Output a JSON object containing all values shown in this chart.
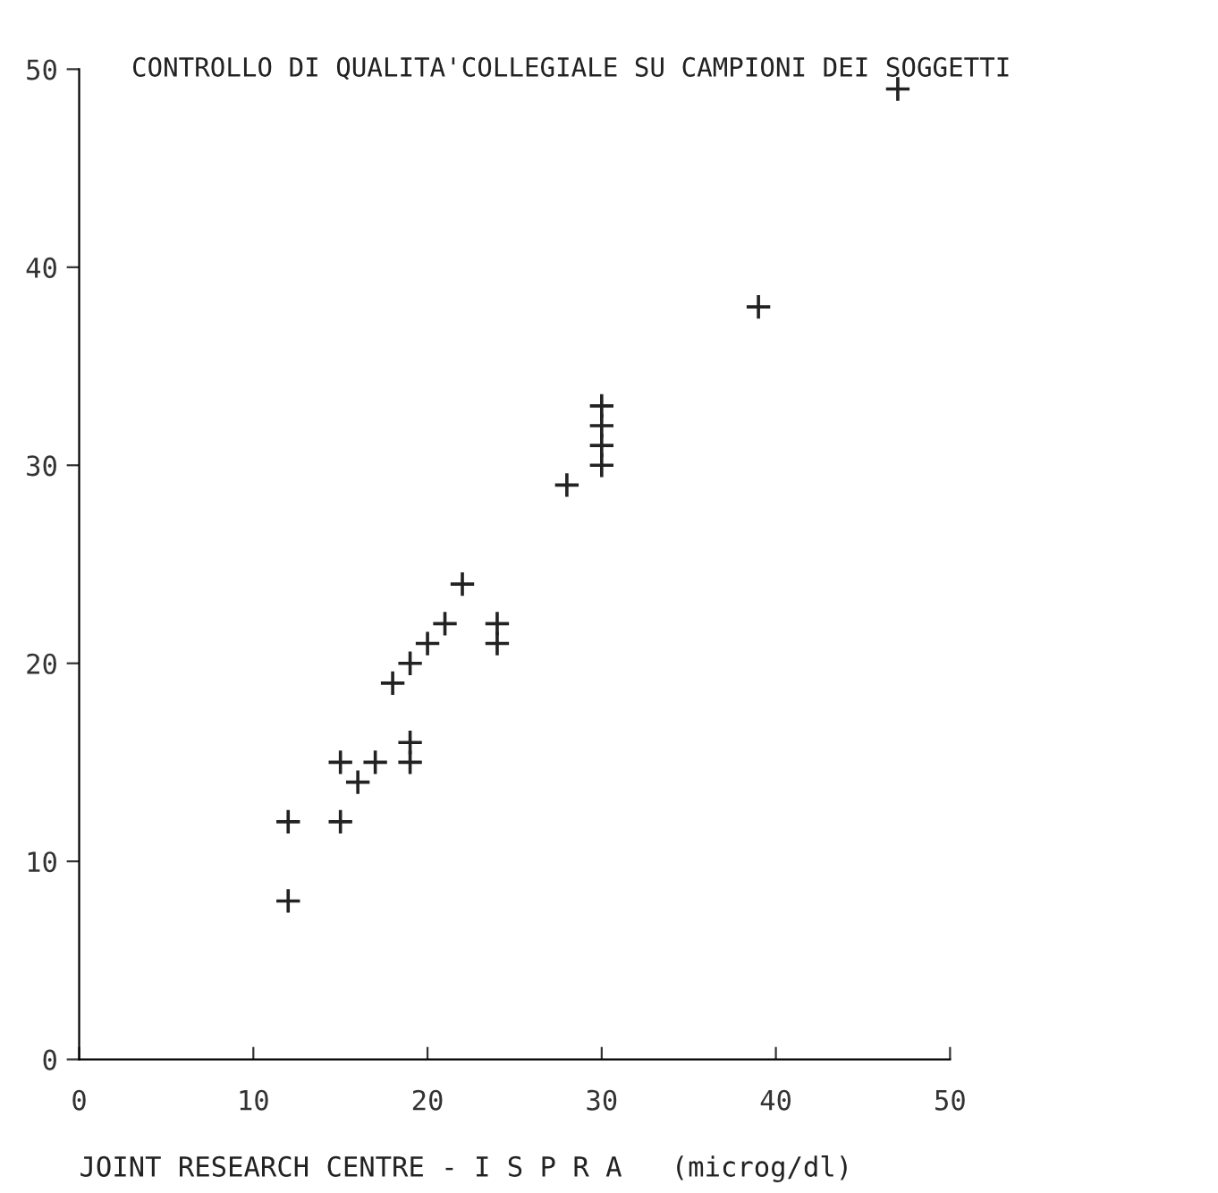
{
  "chart_data": {
    "type": "scatter",
    "title": "CONTROLLO DI QUALITA'COLLEGIALE SU CAMPIONI DEI SOGGETTI",
    "xlabel": "JOINT RESEARCH CENTRE - I S P R A   (microg/dl)",
    "x": [
      12,
      12,
      15,
      15,
      16,
      17,
      18,
      19,
      19,
      19,
      20,
      21,
      22,
      24,
      24,
      28,
      30,
      30,
      30,
      30,
      39,
      47
    ],
    "series": [
      {
        "color": "#222222",
        "values": [
          12,
          8,
          12,
          15,
          14,
          15,
          19,
          15,
          16,
          20,
          21,
          22,
          24,
          22,
          21,
          29,
          30,
          31,
          32,
          33,
          38,
          49
        ]
      }
    ],
    "xlim": [
      0,
      50
    ],
    "ylim": [
      0,
      50
    ],
    "xticks": [
      0,
      10,
      20,
      30,
      40,
      50
    ],
    "yticks": [
      0,
      10,
      20,
      30,
      40,
      50
    ],
    "marker": "cross",
    "grid": false,
    "legend": false
  }
}
